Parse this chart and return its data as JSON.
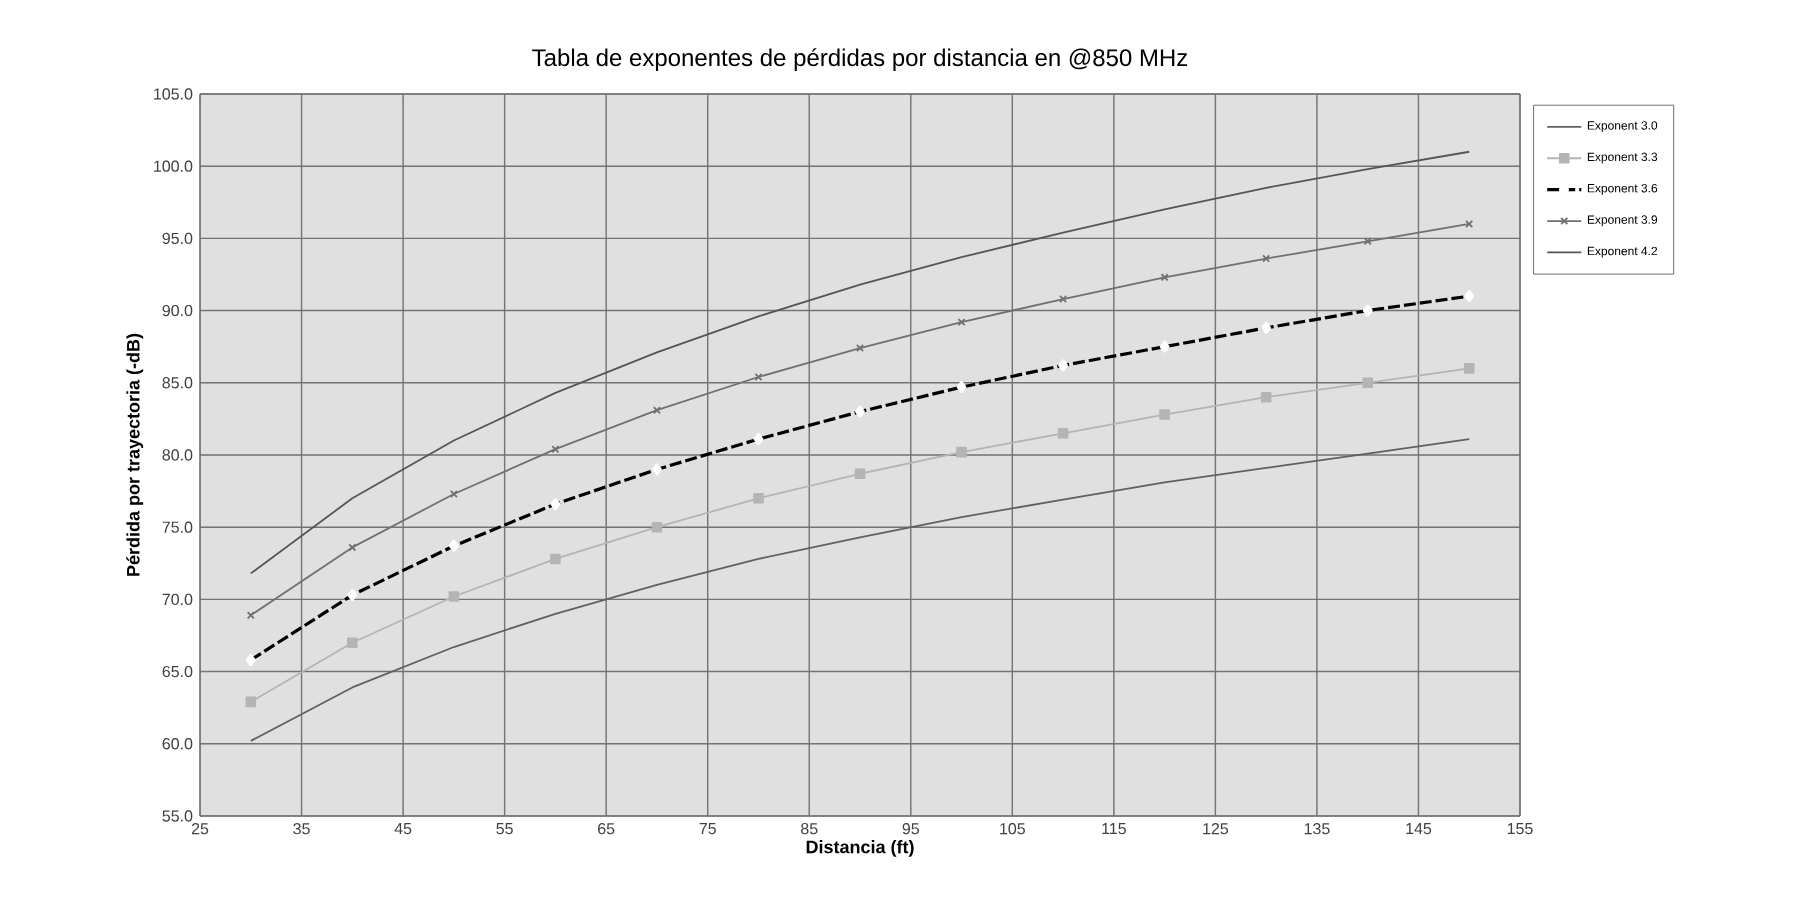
{
  "chart_data": {
    "type": "line",
    "title": "Tabla de exponentes de pérdidas por distancia en @850 MHz",
    "xlabel": "Distancia (ft)",
    "ylabel": "Pérdida por trayectoria (-dB)",
    "x": [
      30,
      40,
      50,
      60,
      70,
      80,
      90,
      100,
      110,
      120,
      130,
      140,
      150
    ],
    "series": [
      {
        "name": "Exponent 3.0",
        "color": "#606060",
        "marker": "none",
        "line_style": "solid",
        "values": [
          60.2,
          63.9,
          66.7,
          69.0,
          71.0,
          72.8,
          74.3,
          75.7,
          76.9,
          78.1,
          79.1,
          80.1,
          81.1
        ]
      },
      {
        "name": "Exponent 3.3",
        "color": "#b4b4b4",
        "marker": "square",
        "line_style": "solid",
        "values": [
          62.9,
          67.0,
          70.2,
          72.8,
          75.0,
          77.0,
          78.7,
          80.2,
          81.5,
          82.8,
          84.0,
          85.0,
          86.0
        ]
      },
      {
        "name": "Exponent 3.6",
        "color": "#000000",
        "marker": "diamond",
        "line_style": "dashed",
        "values": [
          65.8,
          70.3,
          73.7,
          76.6,
          79.0,
          81.1,
          83.0,
          84.7,
          86.2,
          87.5,
          88.8,
          90.0,
          91.0
        ]
      },
      {
        "name": "Exponent 3.9",
        "color": "#707070",
        "marker": "cross",
        "line_style": "solid",
        "values": [
          68.9,
          73.6,
          77.3,
          80.4,
          83.1,
          85.4,
          87.4,
          89.2,
          90.8,
          92.3,
          93.6,
          94.8,
          96.0
        ]
      },
      {
        "name": "Exponent 4.2",
        "color": "#555555",
        "marker": "none",
        "line_style": "solid",
        "values": [
          71.8,
          77.0,
          81.0,
          84.3,
          87.1,
          89.6,
          91.8,
          93.7,
          95.4,
          97.0,
          98.5,
          99.8,
          101.0
        ]
      }
    ],
    "xlim": [
      25,
      155
    ],
    "xticks": [
      25,
      35,
      45,
      55,
      65,
      75,
      85,
      95,
      105,
      115,
      125,
      135,
      145,
      155
    ],
    "ylim": [
      55,
      105
    ],
    "yticks": [
      {
        "value": 55,
        "label": "55.0"
      },
      {
        "value": 60,
        "label": "60.0"
      },
      {
        "value": 65,
        "label": "65.0"
      },
      {
        "value": 70,
        "label": "70.0"
      },
      {
        "value": 75,
        "label": "75.0"
      },
      {
        "value": 80,
        "label": "80.0"
      },
      {
        "value": 85,
        "label": "85.0"
      },
      {
        "value": 90,
        "label": "90.0"
      },
      {
        "value": 95,
        "label": "95.0"
      },
      {
        "value": 100,
        "label": "100.0"
      },
      {
        "value": 105,
        "label": "105.0"
      }
    ],
    "grid": true,
    "legend": "right"
  }
}
